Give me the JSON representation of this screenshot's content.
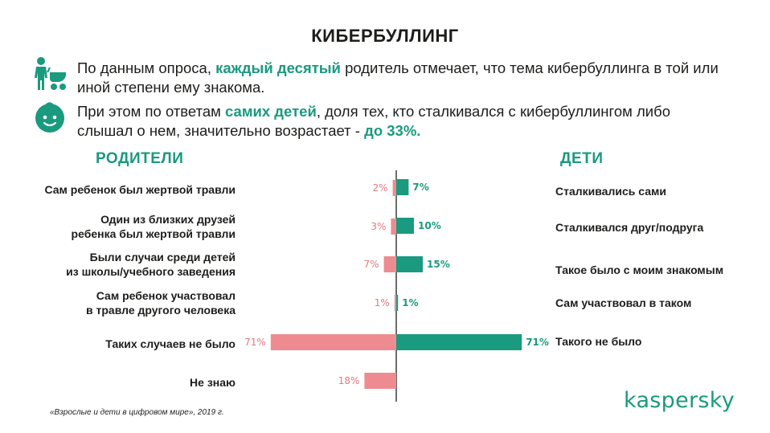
{
  "title": "КИБЕРБУЛЛИНГ",
  "intro1": {
    "before": "По данным опроса, ",
    "highlight": "каждый десятый",
    "after": " родитель отмечает, что тема кибербуллинга в той или иной степени ему знакома."
  },
  "intro2": {
    "before": "При этом по ответам ",
    "highlight": "самих детей",
    "middle": ", доля тех, кто сталкивался с кибербуллингом либо слышал о нем, значительно возрастает - ",
    "highlight2": "до 33%."
  },
  "icons": {
    "parent": "parent-with-stroller-icon",
    "child": "child-face-icon"
  },
  "colors": {
    "accent": "#1a9a7f",
    "parents_bar": "#ee8b91",
    "parents_text": "#e07a80",
    "kids_bar": "#1a9a7f",
    "text": "#1d1d1b"
  },
  "chart_data": {
    "type": "bar",
    "orientation": "horizontal-butterfly",
    "series": [
      {
        "name": "РОДИТЕЛИ",
        "labels": [
          "Сам ребенок был жертвой травли",
          "Один из близких друзей ребенка был жертвой травли",
          "Были случаи среди детей из школы/учебного заведения",
          "Сам ребенок участвовал в травле другого человека",
          "Таких случаев не было",
          "Не знаю"
        ],
        "values": [
          2,
          3,
          7,
          1,
          71,
          18
        ],
        "value_labels": [
          "2%",
          "3%",
          "7%",
          "1%",
          "71%",
          "18%"
        ]
      },
      {
        "name": "ДЕТИ",
        "labels": [
          "Сталкивались сами",
          "Сталкивался друг/подруга",
          "Такое было с моим знакомым",
          "Сам участвовал в таком",
          "Такого не было"
        ],
        "values": [
          7,
          10,
          15,
          1,
          71
        ],
        "value_labels": [
          "7%",
          "10%",
          "15%",
          "1%",
          "71%"
        ]
      }
    ],
    "parents_label_lines": [
      [
        "Сам ребенок был жертвой травли"
      ],
      [
        "Один из близких друзей",
        "ребенка был жертвой травли"
      ],
      [
        "Были случаи среди детей",
        "из школы/учебного заведения"
      ],
      [
        "Сам ребенок участвовал",
        "в травле другого человека"
      ],
      [
        "Таких случаев не было"
      ],
      [
        "Не знаю"
      ]
    ],
    "unit": "%"
  },
  "source": "«Взрослые и дети в цифровом мире», 2019 г.",
  "logo": "kaspersky"
}
